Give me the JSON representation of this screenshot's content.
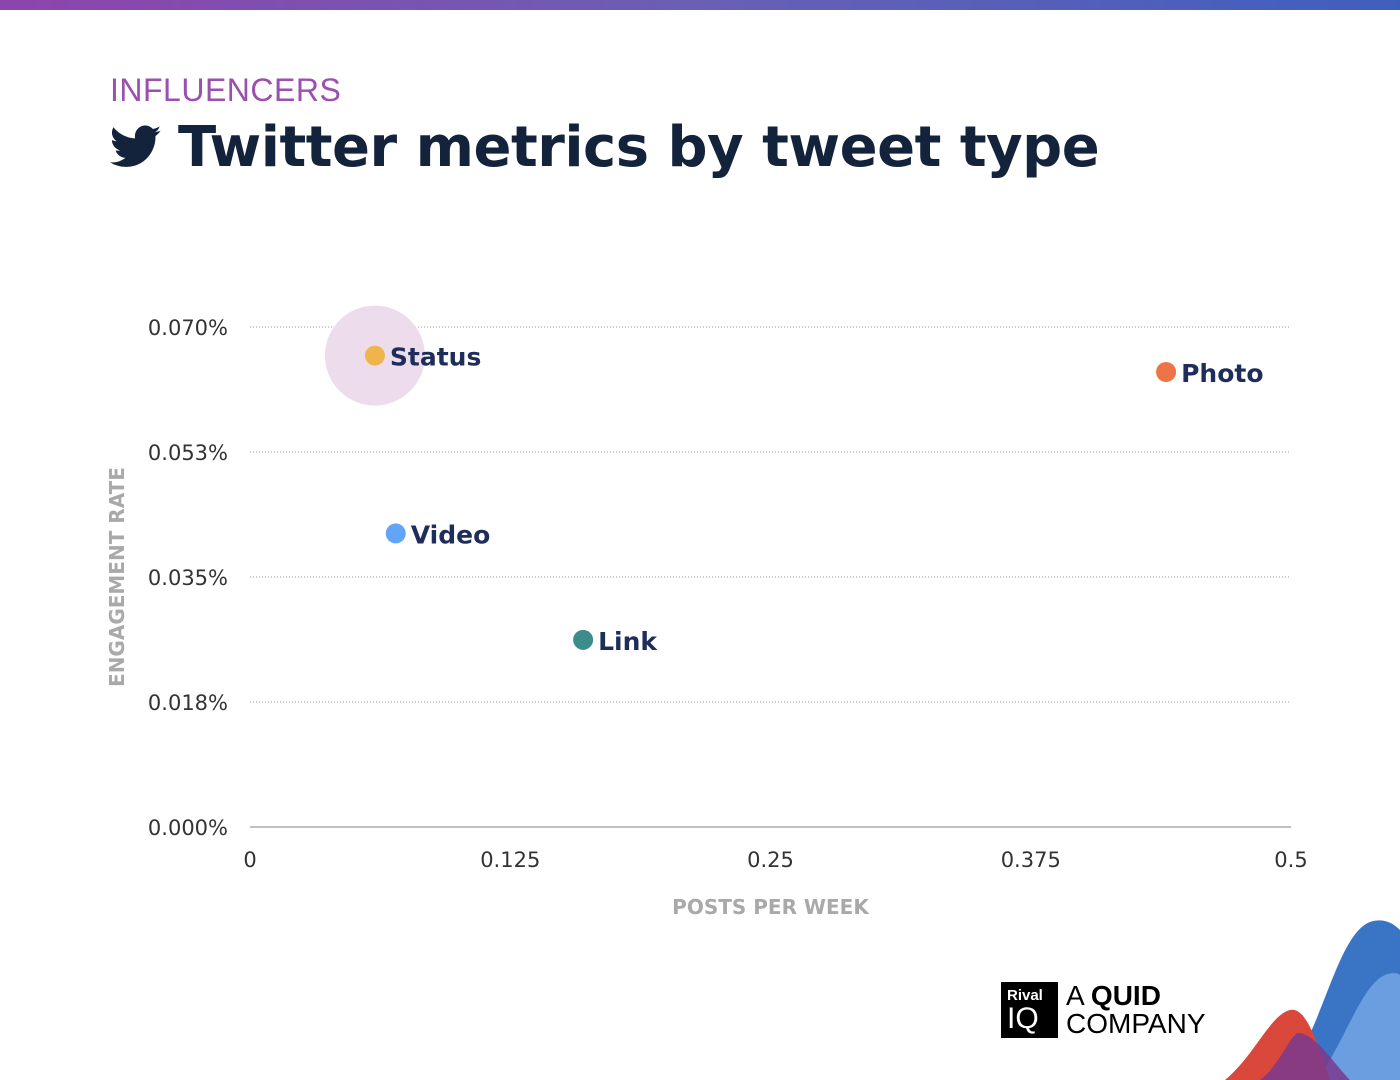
{
  "header": {
    "eyebrow": "INFLUENCERS",
    "title": "Twitter metrics by tweet type",
    "icon": "twitter-bird-icon"
  },
  "chart_data": {
    "type": "scatter",
    "xlabel": "POSTS PER WEEK",
    "ylabel": "ENGAGEMENT RATE",
    "xlim": [
      0,
      0.5
    ],
    "ylim": [
      0,
      0.07
    ],
    "xticks": [
      "0",
      "0.125",
      "0.25",
      "0.375",
      "0.5"
    ],
    "yticks": [
      "0.000%",
      "0.018%",
      "0.035%",
      "0.053%",
      "0.070%"
    ],
    "grid": "horizontal dotted",
    "points": [
      {
        "name": "Status",
        "x": 0.06,
        "y": 0.066,
        "color": "#f0b44c",
        "highlight": true
      },
      {
        "name": "Photo",
        "x": 0.44,
        "y": 0.0637,
        "color": "#ec7547"
      },
      {
        "name": "Video",
        "x": 0.07,
        "y": 0.0411,
        "color": "#62a4f5"
      },
      {
        "name": "Link",
        "x": 0.16,
        "y": 0.0262,
        "color": "#3d8c8c"
      }
    ],
    "highlight_color": "#ecdcec"
  },
  "logo": {
    "box_top": "Rival",
    "box_bottom": "IQ",
    "line1_a": "A ",
    "line1_b": "QUID",
    "line2": "COMPANY"
  }
}
